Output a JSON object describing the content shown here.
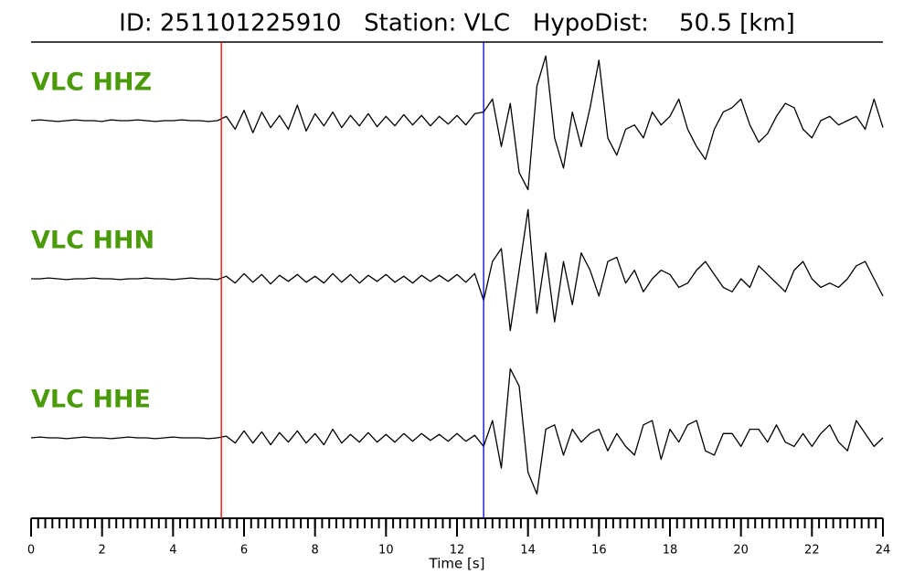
{
  "chart_data": {
    "type": "seismogram",
    "title": "ID: 251101225910   Station: VLC   HypoDist:    50.5 [km]",
    "xlabel": "Time [s]",
    "xlim": [
      0,
      24
    ],
    "xticks": [
      0,
      2,
      4,
      6,
      8,
      10,
      12,
      14,
      16,
      18,
      20,
      22,
      24
    ],
    "xminor_step": 0.2,
    "ylim": [
      -90,
      90
    ],
    "picks": [
      {
        "time": 5.36,
        "color": "#ff0000"
      },
      {
        "time": 12.75,
        "color": "#0000cc"
      }
    ],
    "x": [
      0,
      0.25,
      0.5,
      0.75,
      1,
      1.25,
      1.5,
      1.75,
      2,
      2.25,
      2.5,
      2.75,
      3,
      3.25,
      3.5,
      3.75,
      4,
      4.25,
      4.5,
      4.75,
      5,
      5.25,
      5.5,
      5.75,
      6,
      6.25,
      6.5,
      6.75,
      7,
      7.25,
      7.5,
      7.75,
      8,
      8.25,
      8.5,
      8.75,
      9,
      9.25,
      9.5,
      9.75,
      10,
      10.25,
      10.5,
      10.75,
      11,
      11.25,
      11.5,
      11.75,
      12,
      12.25,
      12.5,
      12.75,
      13,
      13.25,
      13.5,
      13.75,
      14,
      14.25,
      14.5,
      14.75,
      15,
      15.25,
      15.5,
      15.75,
      16,
      16.25,
      16.5,
      16.75,
      17,
      17.25,
      17.5,
      17.75,
      18,
      18.25,
      18.5,
      18.75,
      19,
      19.25,
      19.5,
      19.75,
      20,
      20.25,
      20.5,
      20.75,
      21,
      21.25,
      21.5,
      21.75,
      22,
      22.25,
      22.5,
      22.75,
      23,
      23.25,
      23.5,
      23.75,
      24
    ],
    "series": [
      {
        "name": "VLC HHZ",
        "color": "#000000",
        "values": [
          0,
          1,
          0,
          -1,
          0,
          1,
          0,
          0,
          -1,
          1,
          0,
          0,
          1,
          0,
          -1,
          0,
          0,
          1,
          0,
          0,
          -1,
          0,
          5,
          -10,
          12,
          -14,
          10,
          -8,
          6,
          -10,
          18,
          -12,
          8,
          -6,
          10,
          -8,
          6,
          -6,
          8,
          -7,
          5,
          -6,
          7,
          -5,
          6,
          -6,
          5,
          -4,
          6,
          -5,
          8,
          10,
          25,
          -30,
          20,
          -60,
          -80,
          40,
          75,
          -20,
          -55,
          10,
          -30,
          15,
          70,
          -20,
          -40,
          -10,
          -5,
          -20,
          10,
          -5,
          5,
          25,
          -10,
          -30,
          -45,
          -10,
          10,
          15,
          25,
          -5,
          -25,
          -15,
          5,
          20,
          15,
          -10,
          -20,
          0,
          5,
          -5,
          0,
          5,
          -10,
          25,
          -8
        ]
      },
      {
        "name": "VLC HHN",
        "color": "#000000",
        "values": [
          0,
          0,
          1,
          0,
          -1,
          0,
          0,
          1,
          0,
          0,
          -1,
          0,
          0,
          1,
          0,
          0,
          -1,
          0,
          1,
          0,
          0,
          -1,
          3,
          -5,
          6,
          -4,
          5,
          -6,
          4,
          -3,
          5,
          -4,
          3,
          -5,
          6,
          -4,
          5,
          -5,
          4,
          -3,
          5,
          -4,
          3,
          -5,
          4,
          -3,
          4,
          -3,
          5,
          -4,
          6,
          -25,
          20,
          35,
          -60,
          10,
          80,
          -40,
          30,
          -50,
          20,
          -30,
          30,
          10,
          -20,
          20,
          25,
          -5,
          10,
          -15,
          0,
          10,
          5,
          -10,
          -5,
          10,
          20,
          5,
          -10,
          -15,
          0,
          -10,
          15,
          5,
          -5,
          -15,
          10,
          20,
          0,
          -10,
          -5,
          -10,
          0,
          15,
          20,
          0,
          -20
        ]
      },
      {
        "name": "VLC HHE",
        "color": "#000000",
        "values": [
          0,
          1,
          0,
          0,
          -1,
          0,
          1,
          0,
          0,
          -1,
          0,
          1,
          0,
          0,
          -1,
          0,
          1,
          0,
          0,
          0,
          -1,
          0,
          2,
          -6,
          8,
          -6,
          7,
          -8,
          6,
          -5,
          8,
          -6,
          5,
          -8,
          10,
          -6,
          4,
          -5,
          6,
          -5,
          4,
          -5,
          5,
          -4,
          5,
          -3,
          4,
          -4,
          5,
          -4,
          3,
          -10,
          20,
          -35,
          80,
          60,
          -40,
          -65,
          10,
          15,
          -20,
          10,
          -5,
          5,
          10,
          -15,
          5,
          -10,
          -20,
          15,
          20,
          -25,
          10,
          -5,
          15,
          20,
          -15,
          -20,
          5,
          5,
          -10,
          10,
          10,
          -5,
          15,
          -5,
          -10,
          5,
          -10,
          5,
          15,
          -5,
          -15,
          20,
          5,
          -10,
          0
        ]
      }
    ]
  }
}
